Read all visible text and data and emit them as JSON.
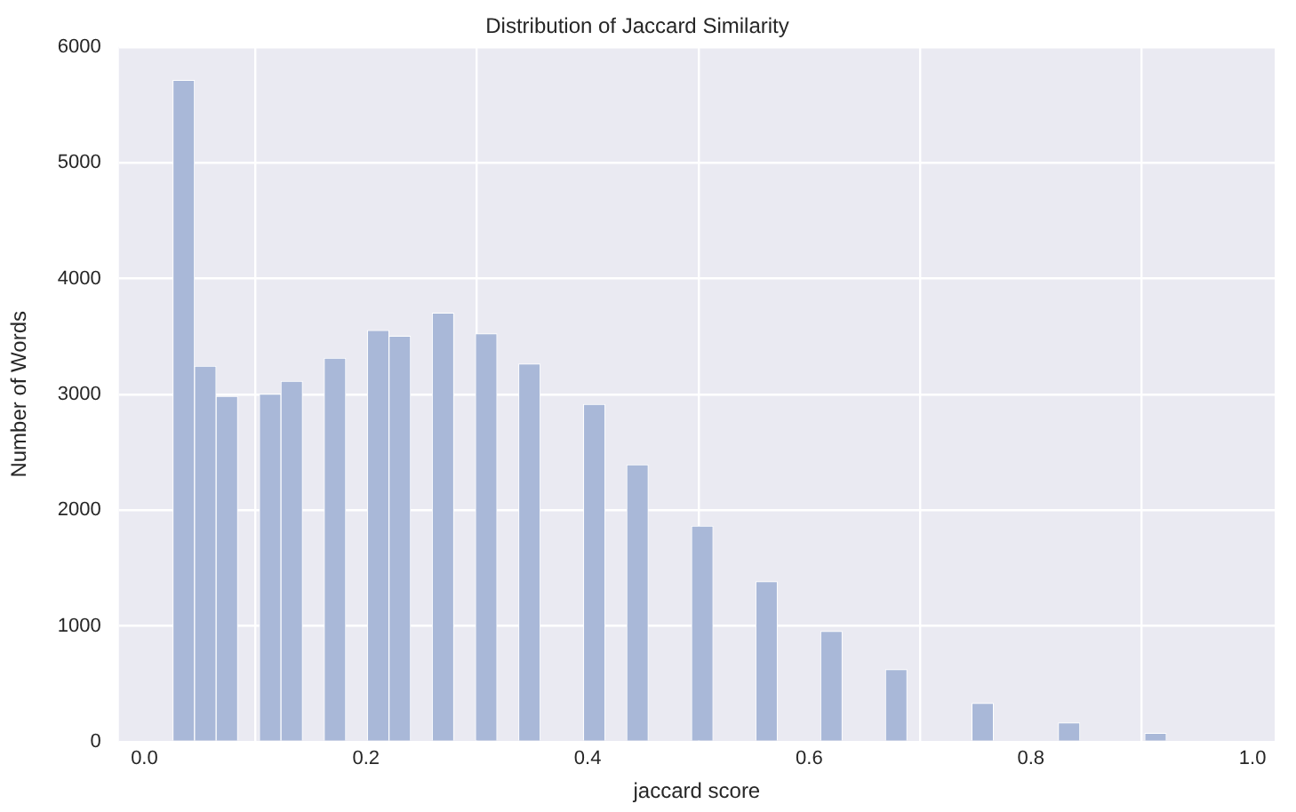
{
  "chart_data": {
    "type": "histogram",
    "title": "Distribution of Jaccard Similarity",
    "xlabel": "jaccard score",
    "ylabel": "Number of Words",
    "bins": [
      0.026,
      0.045,
      0.065,
      0.084,
      0.104,
      0.123,
      0.143,
      0.162,
      0.182,
      0.201,
      0.221,
      0.24,
      0.26,
      0.279,
      0.299,
      0.318,
      0.338,
      0.357,
      0.377,
      0.396,
      0.416,
      0.435,
      0.455,
      0.474,
      0.494,
      0.513,
      0.532,
      0.552,
      0.571,
      0.591,
      0.61,
      0.63,
      0.649,
      0.669,
      0.688,
      0.708,
      0.727,
      0.747,
      0.766,
      0.786,
      0.805,
      0.825,
      0.844,
      0.864,
      0.883,
      0.903,
      0.922,
      0.942,
      0.961,
      0.981
    ],
    "values": [
      5710,
      3240,
      2980,
      0,
      3000,
      3110,
      0,
      3310,
      0,
      3550,
      3500,
      0,
      3700,
      0,
      3520,
      0,
      3260,
      0,
      0,
      2910,
      0,
      2390,
      0,
      0,
      1860,
      0,
      0,
      1380,
      0,
      0,
      950,
      0,
      0,
      620,
      0,
      0,
      0,
      330,
      0,
      0,
      0,
      160,
      0,
      0,
      0,
      70,
      0,
      0,
      0
    ],
    "color": "#a9b8d8",
    "xlim": [
      -0.023,
      1.02
    ],
    "ylim": [
      0,
      6000
    ],
    "xticks": [
      {
        "value": 0,
        "label": "0.0"
      },
      {
        "value": 0.2,
        "label": "0.2"
      },
      {
        "value": 0.4,
        "label": "0.4"
      },
      {
        "value": 0.6,
        "label": "0.6"
      },
      {
        "value": 0.8,
        "label": "0.8"
      },
      {
        "value": 1,
        "label": "1.0"
      }
    ],
    "yticks": [
      0,
      1000,
      2000,
      3000,
      4000,
      5000,
      6000
    ],
    "grid": true,
    "legend": false
  }
}
